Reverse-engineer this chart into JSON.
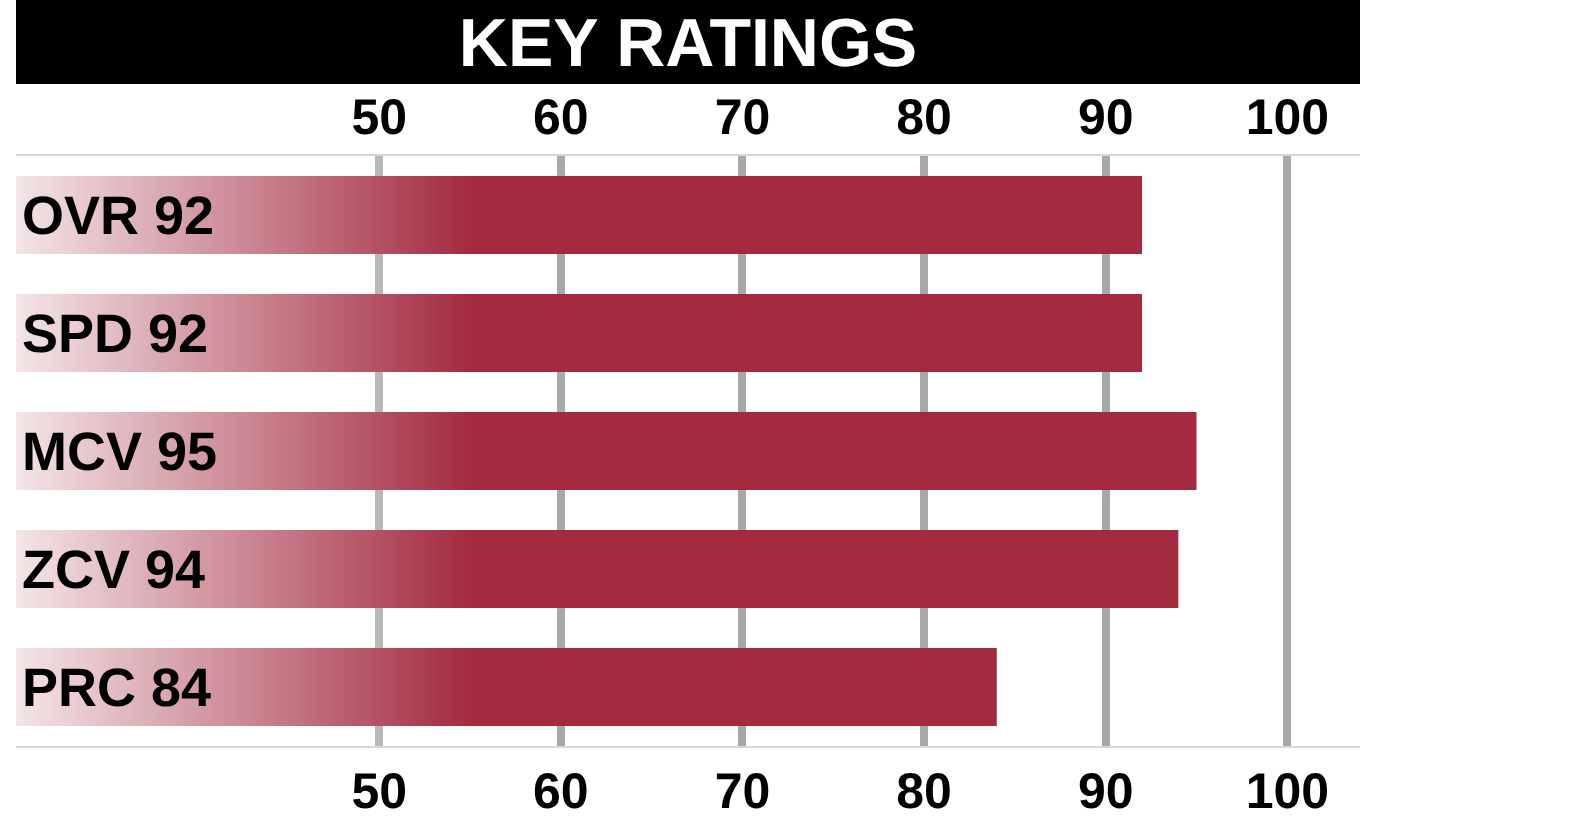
{
  "chart_data": {
    "type": "bar",
    "orientation": "horizontal",
    "title": "KEY RATINGS",
    "categories": [
      "OVR 92",
      "SPD 92",
      "MCV 95",
      "ZCV 94",
      "PRC 84"
    ],
    "values": [
      92,
      92,
      95,
      94,
      84
    ],
    "color": "#a32a3f",
    "xlim": [
      30,
      104
    ],
    "xticks": [
      50,
      60,
      70,
      80,
      90,
      100
    ],
    "x2lim": [
      30,
      104
    ],
    "x2ticks": [
      50,
      60,
      70,
      80,
      90,
      100
    ],
    "grid": "x"
  }
}
